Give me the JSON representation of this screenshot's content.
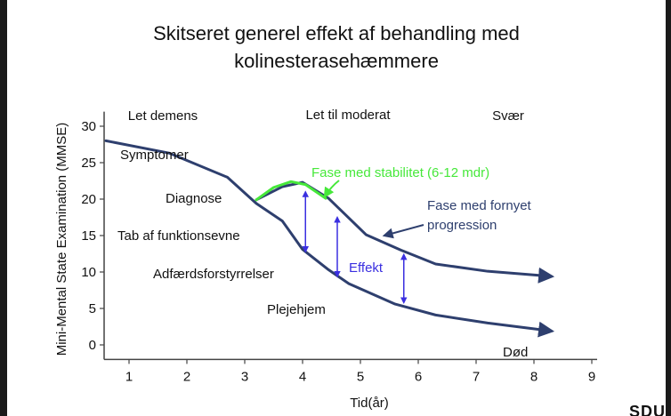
{
  "title": {
    "line1": "Skitseret generel effekt af behandling med",
    "line2": "kolinesterasehæmmere"
  },
  "logo_text": "SDU",
  "chart_data": {
    "type": "line",
    "title": "Skitseret generel effekt af behandling med kolinesterasehæmmere",
    "xlabel": "Tid(år)",
    "ylabel": "Mini-Mental State Examination (MMSE)",
    "xlim": [
      0.6,
      9
    ],
    "ylim": [
      -2,
      32
    ],
    "xticks": [
      1,
      2,
      3,
      4,
      5,
      6,
      7,
      8,
      9
    ],
    "yticks": [
      0,
      5,
      10,
      15,
      20,
      25,
      30
    ],
    "grid": false,
    "colors": {
      "curve": "#2e3f6e",
      "stability": "#46e83a",
      "effect": "#3a2fe0",
      "text": "#111111"
    },
    "series": [
      {
        "x": [
          0.6,
          1.7,
          2.7,
          3.2,
          3.65,
          4.0,
          4.45,
          4.8,
          5.6,
          6.3,
          7.2,
          8.3
        ],
        "values": [
          28,
          26.3,
          23,
          19.4,
          17,
          13.1,
          10.3,
          8.4,
          5.6,
          4.1,
          3.0,
          1.9
        ]
      },
      {
        "x": [
          3.2,
          3.65,
          4.0,
          4.45,
          5.1,
          5.7,
          6.3,
          7.2,
          8.3
        ],
        "values": [
          19.9,
          21.7,
          22.3,
          20.1,
          15.1,
          13.0,
          11.1,
          10.1,
          9.4
        ]
      },
      {
        "x": [
          3.2,
          3.5,
          3.8,
          4.05,
          4.4
        ],
        "values": [
          19.9,
          21.6,
          22.4,
          22.0,
          20.1
        ]
      }
    ],
    "effect_arrows": [
      {
        "x": 4.05,
        "y_from": 21.0,
        "y_to": 12.8
      },
      {
        "x": 4.6,
        "y_from": 17.5,
        "y_to": 9.4
      },
      {
        "x": 5.75,
        "y_from": 12.4,
        "y_to": 5.8
      }
    ],
    "stage_labels": [
      "Let demens",
      "Let til moderat",
      "Svær"
    ],
    "annotations": {
      "symptoms": "Symptomer",
      "diagnosis": "Diagnose",
      "function_loss": "Tab af funktionsevne",
      "behavior": "Adfærdsforstyrrelser",
      "nursing_home": "Plejehjem",
      "death": "Død",
      "stability": "Fase med stabilitet (6-12 mdr)",
      "progression_line1": "Fase med fornyet",
      "progression_line2": "progression",
      "effect": "Effekt"
    }
  }
}
